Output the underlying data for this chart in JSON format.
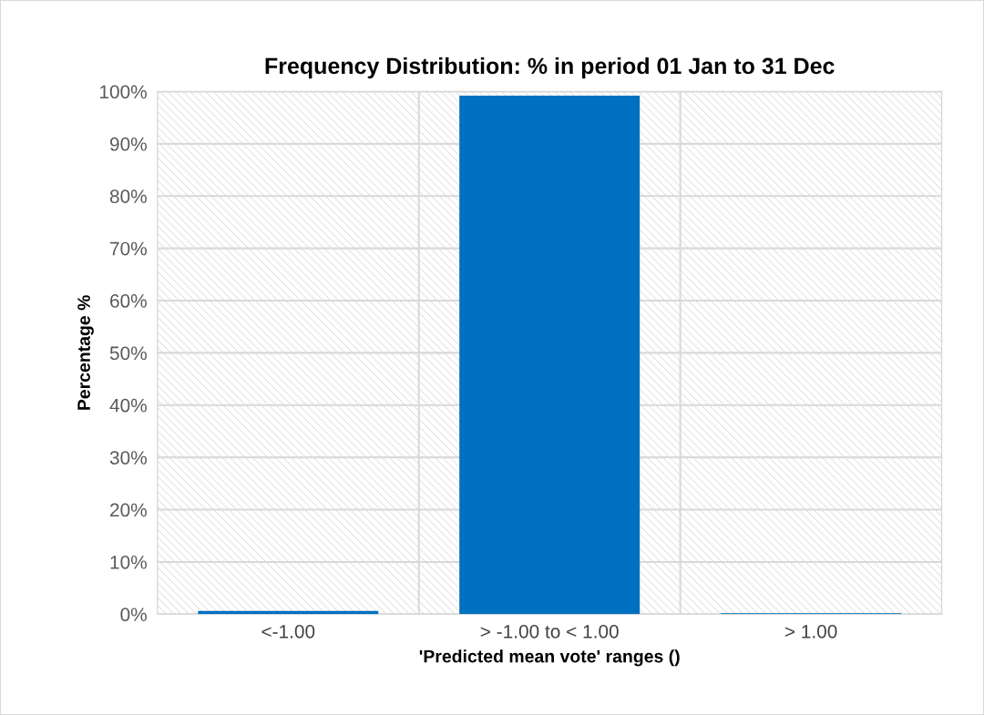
{
  "chart_data": {
    "type": "bar",
    "title": "Frequency Distribution: % in period 01 Jan to 31 Dec",
    "xlabel": "'Predicted mean vote' ranges ()",
    "ylabel": "Percentage %",
    "categories": [
      "<-1.00",
      "> -1.00 to < 1.00",
      "> 1.00"
    ],
    "values": [
      0.6,
      99.2,
      0.2
    ],
    "color": "#0070c0",
    "ylim": [
      0,
      100
    ],
    "yticks": [
      {
        "value": 0,
        "label": "0%"
      },
      {
        "value": 10,
        "label": "10%"
      },
      {
        "value": 20,
        "label": "20%"
      },
      {
        "value": 30,
        "label": "30%"
      },
      {
        "value": 40,
        "label": "40%"
      },
      {
        "value": 50,
        "label": "50%"
      },
      {
        "value": 60,
        "label": "60%"
      },
      {
        "value": 70,
        "label": "70%"
      },
      {
        "value": 80,
        "label": "80%"
      },
      {
        "value": 90,
        "label": "90%"
      },
      {
        "value": 100,
        "label": "100%"
      }
    ],
    "grid": true,
    "legend": false
  }
}
